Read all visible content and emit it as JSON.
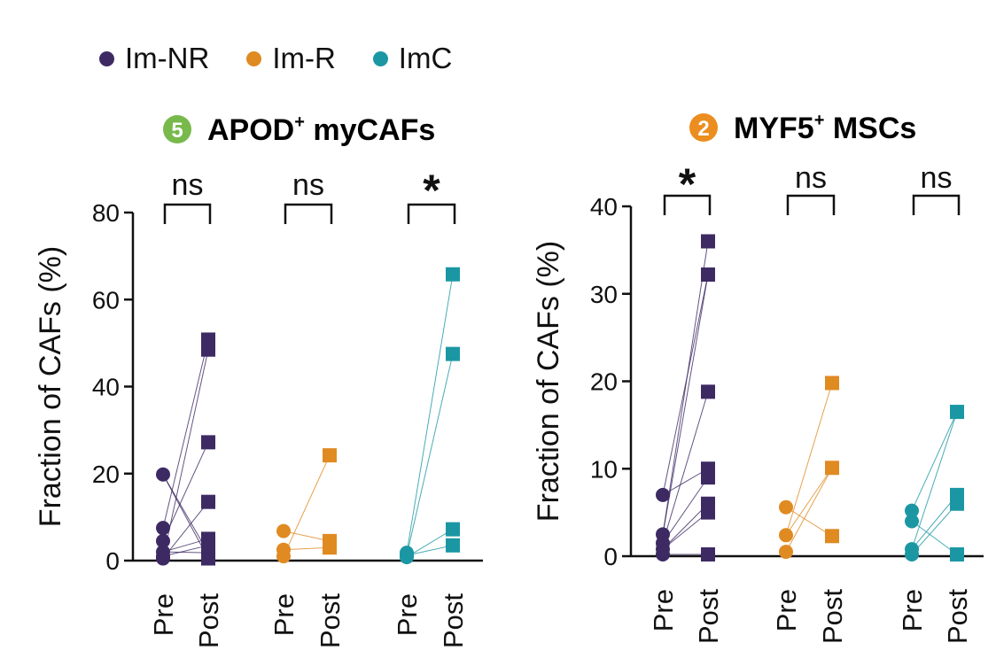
{
  "colors": {
    "Im-NR": "#3e2a63",
    "Im-R": "#e08a22",
    "ImC": "#1b97a4",
    "badge_left": "#78b94c",
    "badge_right": "#ec8d1f"
  },
  "legend": [
    {
      "label": "Im-NR",
      "color": "#3e2a63"
    },
    {
      "label": "Im-R",
      "color": "#e08a22"
    },
    {
      "label": "ImC",
      "color": "#1b97a4"
    }
  ],
  "chart_data": [
    {
      "type": "scatter",
      "title_badge": "5",
      "title": "APOD",
      "title_sup": "+",
      "title_rest": " myCAFs",
      "ylabel": "Fraction of CAFs (%)",
      "ylim": [
        0,
        80
      ],
      "yticks": [
        "0",
        "20",
        "40",
        "60",
        "80"
      ],
      "ytick_values": [
        0,
        20,
        40,
        60,
        80
      ],
      "x_labels": [
        "Pre",
        "Post"
      ],
      "groups": [
        {
          "name": "Im-NR",
          "significance": "ns",
          "pre": [
            19.8,
            7.5,
            4.5,
            2.0,
            1.0,
            0.5
          ],
          "post": [
            50.8,
            48.5,
            27.2,
            13.5,
            5.0,
            3.5,
            1.8,
            0.5
          ],
          "pairs": [
            [
              0,
              6
            ],
            [
              1,
              0
            ],
            [
              2,
              2
            ],
            [
              3,
              4
            ],
            [
              4,
              5
            ],
            [
              5,
              1
            ],
            [
              5,
              3
            ],
            [
              0,
              7
            ],
            [
              3,
              6
            ]
          ]
        },
        {
          "name": "Im-R",
          "significance": "ns",
          "pre": [
            6.8,
            2.5,
            1.0
          ],
          "post": [
            24.2,
            4.5,
            3.0
          ],
          "pairs": [
            [
              0,
              1
            ],
            [
              1,
              2
            ],
            [
              2,
              0
            ]
          ]
        },
        {
          "name": "ImC",
          "significance": "*",
          "pre": [
            1.8,
            1.2,
            0.8
          ],
          "post": [
            65.8,
            47.5,
            7.2,
            3.5
          ],
          "pairs": [
            [
              0,
              0
            ],
            [
              1,
              1
            ],
            [
              2,
              2
            ],
            [
              1,
              3
            ]
          ]
        }
      ]
    },
    {
      "type": "scatter",
      "title_badge": "2",
      "title": "MYF5",
      "title_sup": "+",
      "title_rest": " MSCs",
      "ylabel": "Fraction of CAFs (%)",
      "ylim": [
        0,
        40
      ],
      "yticks": [
        "0",
        "10",
        "20",
        "30",
        "40"
      ],
      "ytick_values": [
        0,
        10,
        20,
        30,
        40
      ],
      "x_labels": [
        "Pre",
        "Post"
      ],
      "groups": [
        {
          "name": "Im-NR",
          "significance": "*",
          "pre": [
            7.0,
            2.5,
            1.5,
            0.8,
            0.2
          ],
          "post": [
            36.0,
            32.2,
            18.8,
            10.0,
            9.0,
            6.0,
            5.0,
            0.2
          ],
          "pairs": [
            [
              0,
              3
            ],
            [
              1,
              0
            ],
            [
              1,
              1
            ],
            [
              2,
              2
            ],
            [
              2,
              4
            ],
            [
              3,
              5
            ],
            [
              3,
              6
            ],
            [
              4,
              7
            ],
            [
              0,
              1
            ]
          ]
        },
        {
          "name": "Im-R",
          "significance": "ns",
          "pre": [
            5.6,
            2.4,
            0.5
          ],
          "post": [
            19.8,
            10.1,
            2.3
          ],
          "pairs": [
            [
              0,
              2
            ],
            [
              1,
              0
            ],
            [
              1,
              1
            ],
            [
              2,
              1
            ]
          ]
        },
        {
          "name": "ImC",
          "significance": "ns",
          "pre": [
            5.2,
            4.0,
            0.8,
            0.2
          ],
          "post": [
            16.5,
            7.0,
            6.0,
            0.2
          ],
          "pairs": [
            [
              0,
              0
            ],
            [
              1,
              3
            ],
            [
              2,
              1
            ],
            [
              3,
              2
            ],
            [
              2,
              0
            ]
          ]
        }
      ]
    }
  ]
}
